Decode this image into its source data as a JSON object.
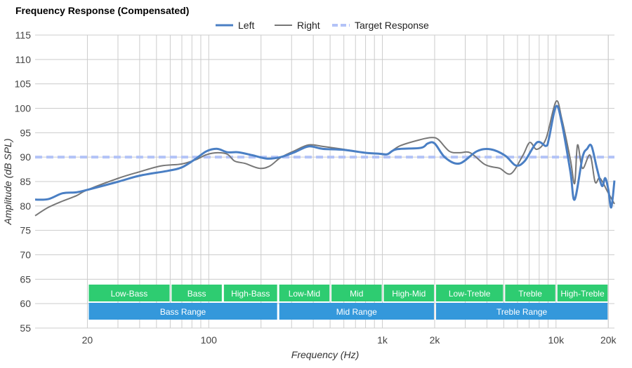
{
  "chart_data": {
    "type": "line",
    "title": "Frequency Response (Compensated)",
    "xlabel": "Frequency (Hz)",
    "ylabel": "Amplitude (dB SPL)",
    "xscale": "log",
    "xlim": [
      10,
      21700
    ],
    "ylim": [
      55,
      115
    ],
    "yticks": [
      55,
      60,
      65,
      70,
      75,
      80,
      85,
      90,
      95,
      100,
      105,
      110,
      115
    ],
    "xticks": [
      {
        "v": 20,
        "label": "20"
      },
      {
        "v": 100,
        "label": "100"
      },
      {
        "v": 1000,
        "label": "1k"
      },
      {
        "v": 2000,
        "label": "2k"
      },
      {
        "v": 10000,
        "label": "10k"
      },
      {
        "v": 20000,
        "label": "20k"
      }
    ],
    "grid": true,
    "legend_position": "top-center",
    "series": [
      {
        "name": "Left",
        "color": "#4a7fc4",
        "dash": false,
        "x": [
          10,
          11.9,
          14.4,
          17.3,
          20,
          30.3,
          40,
          58.2,
          70,
          84.5,
          97,
          112,
          128,
          148,
          178,
          215,
          259,
          312,
          376,
          453,
          598,
          792,
          953,
          1068,
          1205,
          1663,
          1825,
          2000,
          2300,
          2780,
          3500,
          4200,
          5100,
          5860,
          6600,
          7760,
          8760,
          9100,
          10000,
          10800,
          12100,
          12800,
          14200,
          15100,
          16000,
          17200,
          18400,
          19200,
          20000,
          20800,
          21700
        ],
        "y": [
          81.3,
          81.4,
          82.6,
          82.8,
          83.3,
          85.0,
          86.2,
          87.2,
          87.9,
          89.7,
          91.2,
          91.7,
          91.0,
          91.0,
          90.4,
          89.7,
          90.0,
          91.0,
          92.2,
          91.7,
          91.5,
          90.9,
          90.7,
          90.6,
          91.6,
          91.9,
          92.8,
          92.8,
          89.9,
          88.7,
          91.2,
          91.6,
          90.3,
          88.3,
          89.2,
          93.0,
          92.3,
          93.8,
          100.4,
          97.0,
          87.0,
          81.3,
          89.9,
          91.7,
          92.3,
          87.7,
          84.1,
          85.7,
          83.4,
          79.7,
          85.2
        ]
      },
      {
        "name": "Right",
        "color": "#777777",
        "dash": false,
        "x": [
          10,
          11.9,
          14.4,
          17.3,
          20,
          30.3,
          40,
          53,
          70,
          84.5,
          97,
          112,
          128,
          141,
          162,
          196,
          225,
          259,
          312,
          376,
          453,
          598,
          792,
          1000,
          1068,
          1260,
          1663,
          1920,
          2100,
          2430,
          2780,
          3200,
          3850,
          4300,
          4750,
          5500,
          6430,
          7060,
          7760,
          8760,
          10000,
          10800,
          12100,
          12800,
          13300,
          14200,
          15700,
          16800,
          17900,
          19900,
          21700
        ],
        "y": [
          78.0,
          79.7,
          81.0,
          82.1,
          83.3,
          85.7,
          87.0,
          88.2,
          88.6,
          89.5,
          90.5,
          90.9,
          90.6,
          89.2,
          88.7,
          87.7,
          88.2,
          89.9,
          91.3,
          92.5,
          92.2,
          91.6,
          90.9,
          90.7,
          90.6,
          92.3,
          93.6,
          94.0,
          93.6,
          91.2,
          90.9,
          90.9,
          88.6,
          88.0,
          87.7,
          86.6,
          90.3,
          93.0,
          91.6,
          93.8,
          101.4,
          97.8,
          89.5,
          84.6,
          92.5,
          87.7,
          90.4,
          84.9,
          85.7,
          82.8,
          80.4
        ]
      },
      {
        "name": "Target Response",
        "color": "#b3c3f7",
        "dash": true,
        "x": [
          10,
          21700
        ],
        "y": [
          90,
          90
        ]
      }
    ],
    "bands": [
      {
        "label": "Low-Bass",
        "from": 20,
        "to": 60,
        "row": "sub"
      },
      {
        "label": "Bass",
        "from": 60,
        "to": 120,
        "row": "sub"
      },
      {
        "label": "High-Bass",
        "from": 120,
        "to": 250,
        "row": "sub"
      },
      {
        "label": "Low-Mid",
        "from": 250,
        "to": 500,
        "row": "sub"
      },
      {
        "label": "Mid",
        "from": 500,
        "to": 1000,
        "row": "sub"
      },
      {
        "label": "High-Mid",
        "from": 1000,
        "to": 2000,
        "row": "sub"
      },
      {
        "label": "Low-Treble",
        "from": 2000,
        "to": 5000,
        "row": "sub"
      },
      {
        "label": "Treble",
        "from": 5000,
        "to": 10000,
        "row": "sub"
      },
      {
        "label": "High-Treble",
        "from": 10000,
        "to": 20000,
        "row": "sub"
      },
      {
        "label": "Bass Range",
        "from": 20,
        "to": 250,
        "row": "main"
      },
      {
        "label": "Mid Range",
        "from": 250,
        "to": 2000,
        "row": "main"
      },
      {
        "label": "Treble Range",
        "from": 2000,
        "to": 20000,
        "row": "main"
      }
    ],
    "colors": {
      "sub_band": "#2ecc71",
      "main_band": "#3498db",
      "grid": "#cccccc"
    }
  }
}
